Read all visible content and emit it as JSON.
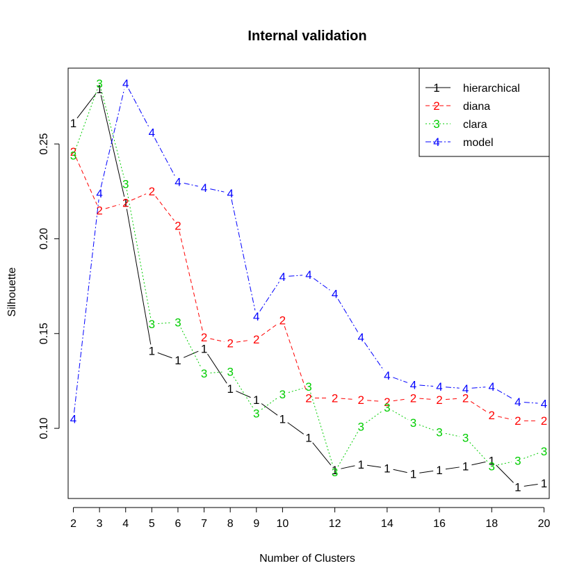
{
  "chart_data": {
    "type": "line",
    "title": "Internal validation",
    "xlabel": "Number of Clusters",
    "ylabel": "Silhouette",
    "x": [
      2,
      3,
      4,
      5,
      6,
      7,
      8,
      9,
      10,
      11,
      12,
      13,
      14,
      15,
      16,
      17,
      18,
      19,
      20
    ],
    "x_tick_labels": [
      "2",
      "3",
      "4",
      "5",
      "6",
      "7",
      "8",
      "9",
      "10",
      "12",
      "14",
      "16",
      "18",
      "20"
    ],
    "y_tick_labels": [
      "0.10",
      "0.15",
      "0.20",
      "0.25"
    ],
    "xlim": [
      1.8,
      20.2
    ],
    "ylim": [
      0.063,
      0.29
    ],
    "legend_position": "top-right",
    "series": [
      {
        "name": "hierarchical",
        "marker": "1",
        "color": "#000000",
        "dash": "",
        "values": [
          0.261,
          0.279,
          0.219,
          0.141,
          0.136,
          0.142,
          0.121,
          0.115,
          0.105,
          0.095,
          0.078,
          0.081,
          0.079,
          0.076,
          0.078,
          0.08,
          0.083,
          0.069,
          0.071
        ]
      },
      {
        "name": "diana",
        "marker": "2",
        "color": "#ff0000",
        "dash": "6,4",
        "values": [
          0.246,
          0.215,
          0.219,
          0.225,
          0.207,
          0.148,
          0.145,
          0.147,
          0.157,
          0.116,
          0.116,
          0.115,
          0.114,
          0.116,
          0.115,
          0.116,
          0.107,
          0.104,
          0.104
        ]
      },
      {
        "name": "clara",
        "marker": "3",
        "color": "#00cd00",
        "dash": "2,3",
        "values": [
          0.244,
          0.282,
          0.229,
          0.155,
          0.156,
          0.129,
          0.13,
          0.108,
          0.118,
          0.122,
          0.077,
          0.101,
          0.111,
          0.103,
          0.098,
          0.095,
          0.08,
          0.083,
          0.088
        ]
      },
      {
        "name": "model",
        "marker": "4",
        "color": "#0000ff",
        "dash": "8,3,2,3",
        "values": [
          0.105,
          0.224,
          0.282,
          0.256,
          0.23,
          0.227,
          0.224,
          0.159,
          0.18,
          0.181,
          0.171,
          0.148,
          0.128,
          0.123,
          0.122,
          0.121,
          0.122,
          0.114,
          0.113
        ]
      }
    ]
  }
}
